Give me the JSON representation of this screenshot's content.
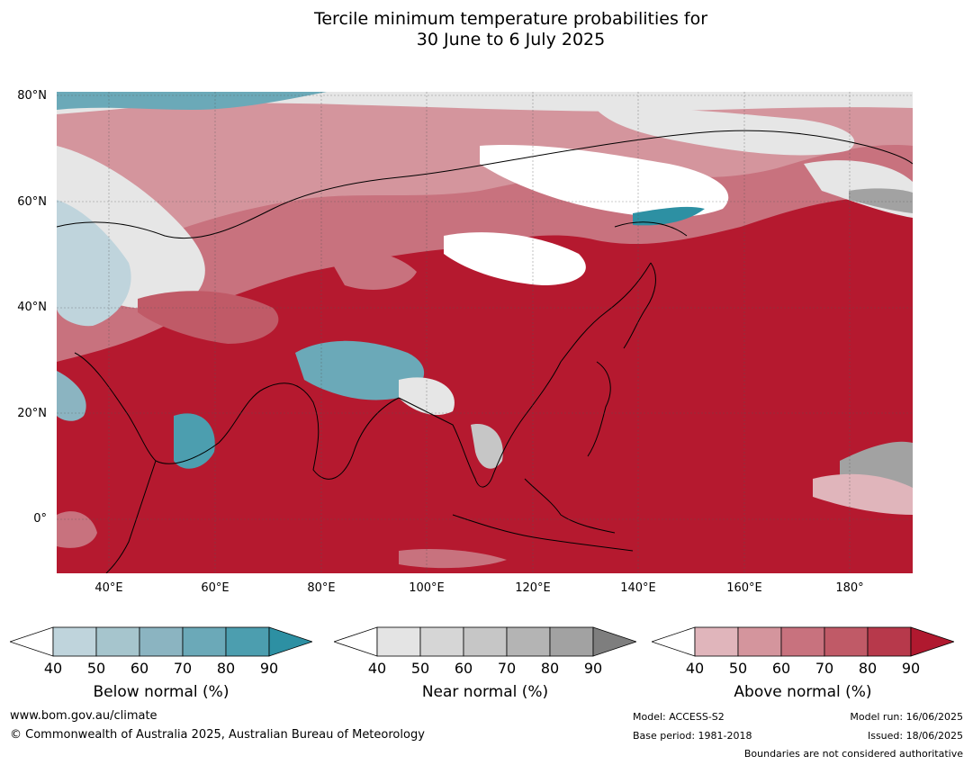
{
  "title_line1": "Tercile minimum temperature probabilities for",
  "title_line2": "30 June to 6 July 2025",
  "lat_labels": [
    "80°N",
    "60°N",
    "40°N",
    "20°N",
    "0°"
  ],
  "lon_labels": [
    "40°E",
    "60°E",
    "80°E",
    "100°E",
    "120°E",
    "140°E",
    "160°E",
    "180°"
  ],
  "colorbars": [
    {
      "label": "Below normal (%)",
      "ticks": [
        "40",
        "50",
        "60",
        "70",
        "80",
        "90"
      ],
      "colors": [
        "#ffffff",
        "#bfd4dc",
        "#a6c5cd",
        "#8bb4c1",
        "#6ba9b8",
        "#4c9eaf",
        "#2d90a3"
      ]
    },
    {
      "label": "Near normal (%)",
      "ticks": [
        "40",
        "50",
        "60",
        "70",
        "80",
        "90"
      ],
      "colors": [
        "#ffffff",
        "#e4e4e4",
        "#d6d6d6",
        "#c6c6c6",
        "#b4b4b4",
        "#a2a2a2",
        "#7e7e7e"
      ]
    },
    {
      "label": "Above normal (%)",
      "ticks": [
        "40",
        "50",
        "60",
        "70",
        "80",
        "90"
      ],
      "colors": [
        "#ffffff",
        "#e0b5bb",
        "#d4959d",
        "#c8727e",
        "#c05a67",
        "#b7394b",
        "#b0192f"
      ]
    }
  ],
  "footer": {
    "website": "www.bom.gov.au/climate",
    "copyright": "© Commonwealth of Australia 2025, Australian Bureau of Meteorology",
    "model": "Model: ACCESS-S2",
    "base_period": "Base period: 1981-2018",
    "model_run": "Model run: 16/06/2025",
    "issued": "Issued: 18/06/2025",
    "disclaimer": "Boundaries are not considered authoritative"
  }
}
